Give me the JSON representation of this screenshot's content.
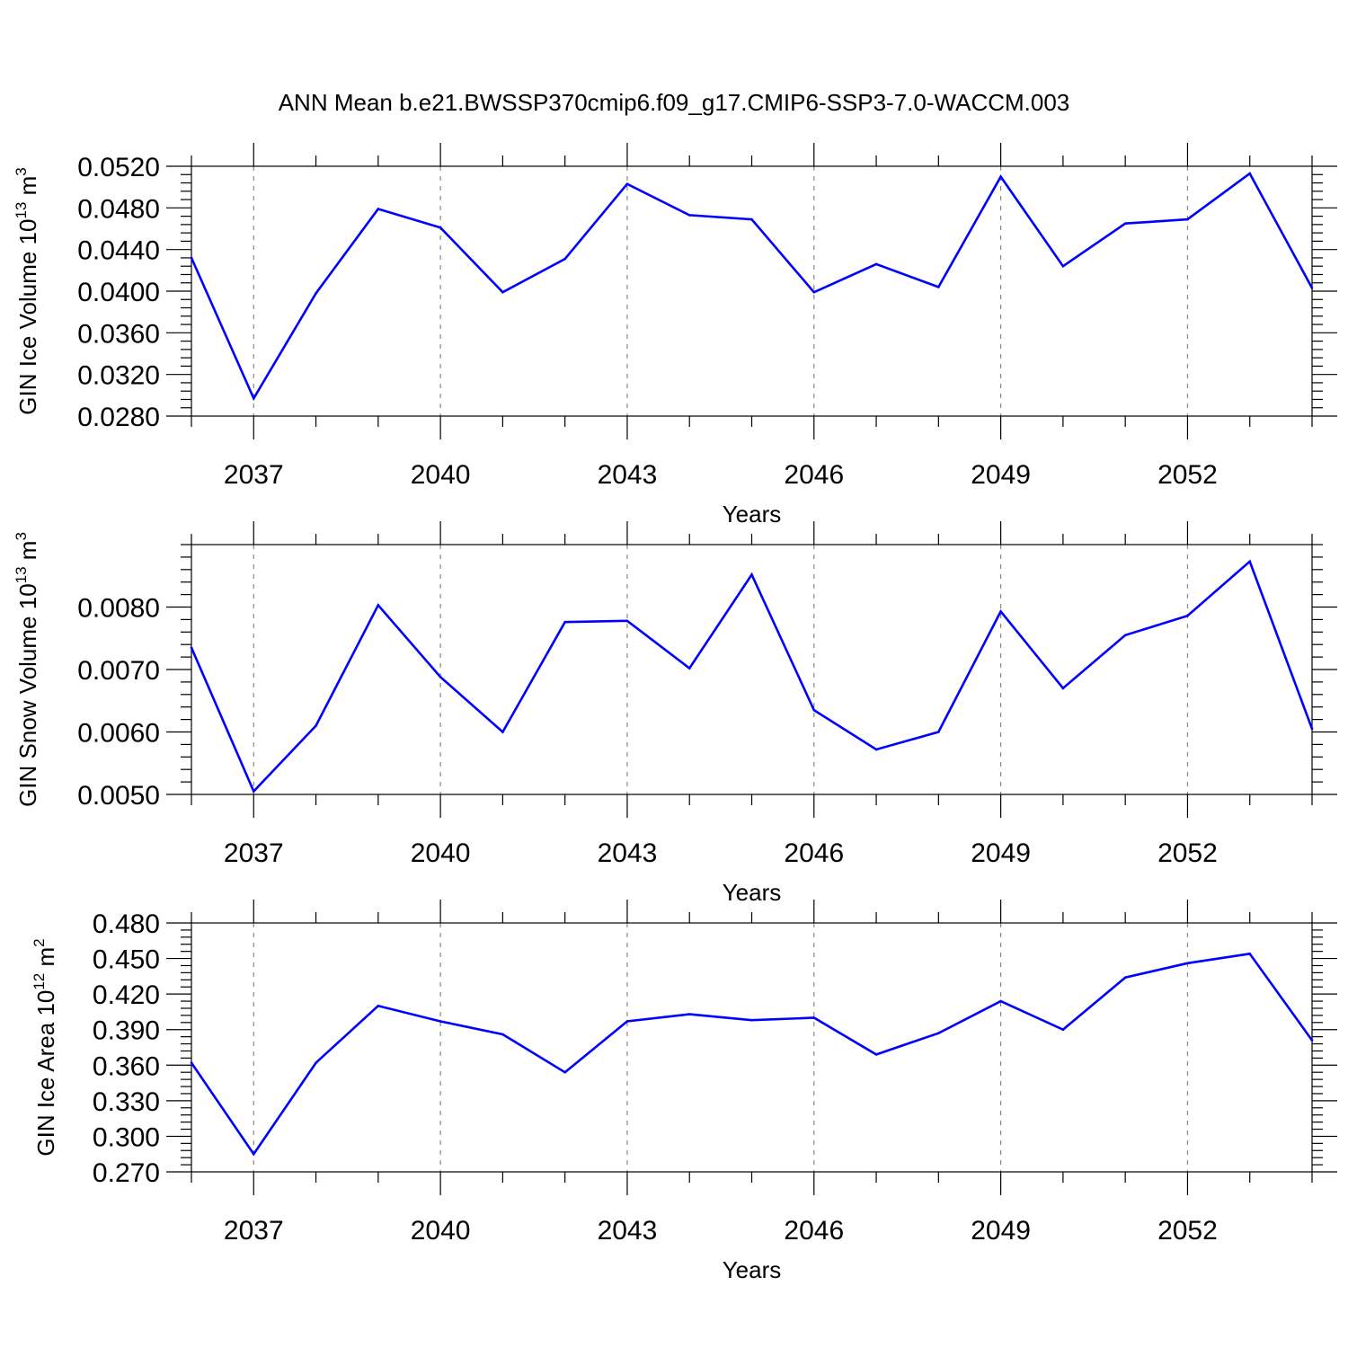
{
  "title": "ANN Mean b.e21.BWSSP370cmip6.f09_g17.CMIP6-SSP3-7.0-WACCM.003",
  "line_color": "#0000ff",
  "chart_data": [
    {
      "type": "line",
      "xlabel": "Years",
      "ylabel_main": "GIN Ice Volume 10",
      "ylabel_exp": "13",
      "ylabel_unit": " m",
      "ylabel_unit_exp": "3",
      "xlim": [
        2036,
        2054
      ],
      "ylim": [
        0.028,
        0.052
      ],
      "x_ticks": [
        "2037",
        "2040",
        "2043",
        "2046",
        "2049",
        "2052"
      ],
      "y_ticks": [
        "0.0520",
        "0.0480",
        "0.0440",
        "0.0400",
        "0.0360",
        "0.0320",
        "0.0280"
      ],
      "x": [
        2036,
        2037,
        2038,
        2039,
        2040,
        2041,
        2042,
        2043,
        2044,
        2045,
        2046,
        2047,
        2048,
        2049,
        2050,
        2051,
        2052,
        2053,
        2054
      ],
      "values": [
        0.0432,
        0.0297,
        0.0398,
        0.0479,
        0.0461,
        0.0399,
        0.0431,
        0.0503,
        0.0473,
        0.0469,
        0.0399,
        0.0426,
        0.0404,
        0.051,
        0.0424,
        0.0465,
        0.0469,
        0.0513,
        0.0403
      ],
      "grid": "vertical dashed at labeled years"
    },
    {
      "type": "line",
      "xlabel": "Years",
      "ylabel_main": "GIN Snow Volume 10",
      "ylabel_exp": "13",
      "ylabel_unit": " m",
      "ylabel_unit_exp": "3",
      "xlim": [
        2036,
        2054
      ],
      "ylim": [
        0.005,
        0.009
      ],
      "x_ticks": [
        "2037",
        "2040",
        "2043",
        "2046",
        "2049",
        "2052"
      ],
      "y_ticks": [
        "0.0080",
        "0.0070",
        "0.0060",
        "0.0050"
      ],
      "x": [
        2036,
        2037,
        2038,
        2039,
        2040,
        2041,
        2042,
        2043,
        2044,
        2045,
        2046,
        2047,
        2048,
        2049,
        2050,
        2051,
        2052,
        2053,
        2054
      ],
      "values": [
        0.00735,
        0.00505,
        0.0061,
        0.00803,
        0.00688,
        0.006,
        0.00776,
        0.00778,
        0.00702,
        0.00852,
        0.00635,
        0.00572,
        0.006,
        0.00793,
        0.0067,
        0.00755,
        0.00786,
        0.00873,
        0.00605
      ],
      "grid": "vertical dashed at labeled years"
    },
    {
      "type": "line",
      "xlabel": "Years",
      "ylabel_main": "GIN Ice Area 10",
      "ylabel_exp": "12",
      "ylabel_unit": " m",
      "ylabel_unit_exp": "2",
      "xlim": [
        2036,
        2054
      ],
      "ylim": [
        0.27,
        0.48
      ],
      "x_ticks": [
        "2037",
        "2040",
        "2043",
        "2046",
        "2049",
        "2052"
      ],
      "y_ticks": [
        "0.480",
        "0.450",
        "0.420",
        "0.390",
        "0.360",
        "0.330",
        "0.300",
        "0.270"
      ],
      "x": [
        2036,
        2037,
        2038,
        2039,
        2040,
        2041,
        2042,
        2043,
        2044,
        2045,
        2046,
        2047,
        2048,
        2049,
        2050,
        2051,
        2052,
        2053,
        2054
      ],
      "values": [
        0.362,
        0.285,
        0.362,
        0.41,
        0.397,
        0.386,
        0.354,
        0.397,
        0.403,
        0.398,
        0.4,
        0.369,
        0.387,
        0.414,
        0.39,
        0.434,
        0.446,
        0.454,
        0.381
      ],
      "grid": "vertical dashed at labeled years"
    }
  ]
}
